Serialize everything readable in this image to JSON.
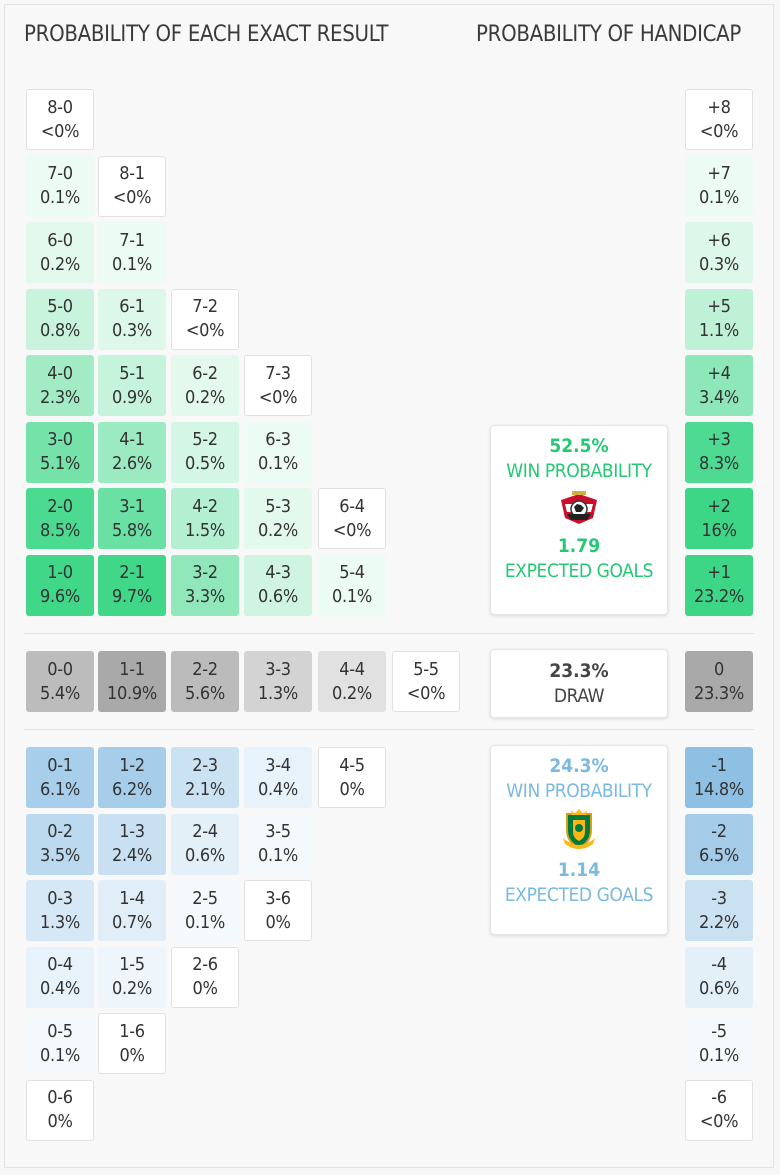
{
  "headers": {
    "exact": "PROBABILITY OF EACH EXACT RESULT",
    "handicap": "PROBABILITY OF HANDICAP"
  },
  "colors": {
    "home": "#3dd687",
    "away": "#8ec0e4",
    "draw": "#a9a9a9",
    "home_text": "#25c873",
    "away_text": "#7ab9e0"
  },
  "home_rows": [
    [
      {
        "score": "8-0",
        "prob": "<0%",
        "p": 0
      }
    ],
    [
      {
        "score": "7-0",
        "prob": "0.1%",
        "p": 0.1
      },
      {
        "score": "8-1",
        "prob": "<0%",
        "p": 0
      }
    ],
    [
      {
        "score": "6-0",
        "prob": "0.2%",
        "p": 0.2
      },
      {
        "score": "7-1",
        "prob": "0.1%",
        "p": 0.1
      }
    ],
    [
      {
        "score": "5-0",
        "prob": "0.8%",
        "p": 0.8
      },
      {
        "score": "6-1",
        "prob": "0.3%",
        "p": 0.3
      },
      {
        "score": "7-2",
        "prob": "<0%",
        "p": 0
      }
    ],
    [
      {
        "score": "4-0",
        "prob": "2.3%",
        "p": 2.3
      },
      {
        "score": "5-1",
        "prob": "0.9%",
        "p": 0.9
      },
      {
        "score": "6-2",
        "prob": "0.2%",
        "p": 0.2
      },
      {
        "score": "7-3",
        "prob": "<0%",
        "p": 0
      }
    ],
    [
      {
        "score": "3-0",
        "prob": "5.1%",
        "p": 5.1
      },
      {
        "score": "4-1",
        "prob": "2.6%",
        "p": 2.6
      },
      {
        "score": "5-2",
        "prob": "0.5%",
        "p": 0.5
      },
      {
        "score": "6-3",
        "prob": "0.1%",
        "p": 0.1
      }
    ],
    [
      {
        "score": "2-0",
        "prob": "8.5%",
        "p": 8.5
      },
      {
        "score": "3-1",
        "prob": "5.8%",
        "p": 5.8
      },
      {
        "score": "4-2",
        "prob": "1.5%",
        "p": 1.5
      },
      {
        "score": "5-3",
        "prob": "0.2%",
        "p": 0.2
      },
      {
        "score": "6-4",
        "prob": "<0%",
        "p": 0
      }
    ],
    [
      {
        "score": "1-0",
        "prob": "9.6%",
        "p": 9.6
      },
      {
        "score": "2-1",
        "prob": "9.7%",
        "p": 9.7
      },
      {
        "score": "3-2",
        "prob": "3.3%",
        "p": 3.3
      },
      {
        "score": "4-3",
        "prob": "0.6%",
        "p": 0.6
      },
      {
        "score": "5-4",
        "prob": "0.1%",
        "p": 0.1
      }
    ]
  ],
  "draw_row": [
    {
      "score": "0-0",
      "prob": "5.4%",
      "p": 5.4
    },
    {
      "score": "1-1",
      "prob": "10.9%",
      "p": 10.9
    },
    {
      "score": "2-2",
      "prob": "5.6%",
      "p": 5.6
    },
    {
      "score": "3-3",
      "prob": "1.3%",
      "p": 1.3
    },
    {
      "score": "4-4",
      "prob": "0.2%",
      "p": 0.2
    },
    {
      "score": "5-5",
      "prob": "<0%",
      "p": 0
    }
  ],
  "away_rows": [
    [
      {
        "score": "0-1",
        "prob": "6.1%",
        "p": 6.1
      },
      {
        "score": "1-2",
        "prob": "6.2%",
        "p": 6.2
      },
      {
        "score": "2-3",
        "prob": "2.1%",
        "p": 2.1
      },
      {
        "score": "3-4",
        "prob": "0.4%",
        "p": 0.4
      },
      {
        "score": "4-5",
        "prob": "0%",
        "p": 0
      }
    ],
    [
      {
        "score": "0-2",
        "prob": "3.5%",
        "p": 3.5
      },
      {
        "score": "1-3",
        "prob": "2.4%",
        "p": 2.4
      },
      {
        "score": "2-4",
        "prob": "0.6%",
        "p": 0.6
      },
      {
        "score": "3-5",
        "prob": "0.1%",
        "p": 0.1
      }
    ],
    [
      {
        "score": "0-3",
        "prob": "1.3%",
        "p": 1.3
      },
      {
        "score": "1-4",
        "prob": "0.7%",
        "p": 0.7
      },
      {
        "score": "2-5",
        "prob": "0.1%",
        "p": 0.1
      },
      {
        "score": "3-6",
        "prob": "0%",
        "p": 0
      }
    ],
    [
      {
        "score": "0-4",
        "prob": "0.4%",
        "p": 0.4
      },
      {
        "score": "1-5",
        "prob": "0.2%",
        "p": 0.2
      },
      {
        "score": "2-6",
        "prob": "0%",
        "p": 0
      }
    ],
    [
      {
        "score": "0-5",
        "prob": "0.1%",
        "p": 0.1
      },
      {
        "score": "1-6",
        "prob": "0%",
        "p": 0
      }
    ],
    [
      {
        "score": "0-6",
        "prob": "0%",
        "p": 0
      }
    ]
  ],
  "handicap": [
    {
      "label": "+8",
      "prob": "<0%",
      "p": 0,
      "side": "home"
    },
    {
      "label": "+7",
      "prob": "0.1%",
      "p": 0.1,
      "side": "home"
    },
    {
      "label": "+6",
      "prob": "0.3%",
      "p": 0.3,
      "side": "home"
    },
    {
      "label": "+5",
      "prob": "1.1%",
      "p": 1.1,
      "side": "home"
    },
    {
      "label": "+4",
      "prob": "3.4%",
      "p": 3.4,
      "side": "home"
    },
    {
      "label": "+3",
      "prob": "8.3%",
      "p": 8.3,
      "side": "home"
    },
    {
      "label": "+2",
      "prob": "16%",
      "p": 16,
      "side": "home"
    },
    {
      "label": "+1",
      "prob": "23.2%",
      "p": 23.2,
      "side": "home"
    },
    {
      "label": "0",
      "prob": "23.3%",
      "p": 23.3,
      "side": "draw"
    },
    {
      "label": "-1",
      "prob": "14.8%",
      "p": 14.8,
      "side": "away"
    },
    {
      "label": "-2",
      "prob": "6.5%",
      "p": 6.5,
      "side": "away"
    },
    {
      "label": "-3",
      "prob": "2.2%",
      "p": 2.2,
      "side": "away"
    },
    {
      "label": "-4",
      "prob": "0.6%",
      "p": 0.6,
      "side": "away"
    },
    {
      "label": "-5",
      "prob": "0.1%",
      "p": 0.1,
      "side": "away"
    },
    {
      "label": "-6",
      "prob": "<0%",
      "p": 0,
      "side": "away"
    }
  ],
  "home_card": {
    "win_pct": "52.5%",
    "win_label": "WIN PROBABILITY",
    "xg": "1.79",
    "xg_label": "EXPECTED GOALS",
    "crest": "egypt-crest-icon"
  },
  "draw_card": {
    "pct": "23.3%",
    "label": "DRAW"
  },
  "away_card": {
    "win_pct": "24.3%",
    "win_label": "WIN PROBABILITY",
    "xg": "1.14",
    "xg_label": "EXPECTED GOALS",
    "crest": "south-africa-crest-icon"
  },
  "chart_data": {
    "type": "heatmap",
    "title": "PROBABILITY OF EACH EXACT RESULT",
    "series": [
      {
        "name": "home-win",
        "values": {
          "8-0": 0,
          "7-0": 0.1,
          "8-1": 0,
          "6-0": 0.2,
          "7-1": 0.1,
          "5-0": 0.8,
          "6-1": 0.3,
          "7-2": 0,
          "4-0": 2.3,
          "5-1": 0.9,
          "6-2": 0.2,
          "7-3": 0,
          "3-0": 5.1,
          "4-1": 2.6,
          "5-2": 0.5,
          "6-3": 0.1,
          "2-0": 8.5,
          "3-1": 5.8,
          "4-2": 1.5,
          "5-3": 0.2,
          "6-4": 0,
          "1-0": 9.6,
          "2-1": 9.7,
          "3-2": 3.3,
          "4-3": 0.6,
          "5-4": 0.1
        }
      },
      {
        "name": "draw",
        "values": {
          "0-0": 5.4,
          "1-1": 10.9,
          "2-2": 5.6,
          "3-3": 1.3,
          "4-4": 0.2,
          "5-5": 0
        }
      },
      {
        "name": "away-win",
        "values": {
          "0-1": 6.1,
          "1-2": 6.2,
          "2-3": 2.1,
          "3-4": 0.4,
          "4-5": 0,
          "0-2": 3.5,
          "1-3": 2.4,
          "2-4": 0.6,
          "3-5": 0.1,
          "0-3": 1.3,
          "1-4": 0.7,
          "2-5": 0.1,
          "3-6": 0,
          "0-4": 0.4,
          "1-5": 0.2,
          "2-6": 0,
          "0-5": 0.1,
          "1-6": 0,
          "0-6": 0
        }
      }
    ],
    "handicap": {
      "+8": 0,
      "+7": 0.1,
      "+6": 0.3,
      "+5": 1.1,
      "+4": 3.4,
      "+3": 8.3,
      "+2": 16,
      "+1": 23.2,
      "0": 23.3,
      "-1": 14.8,
      "-2": 6.5,
      "-3": 2.2,
      "-4": 0.6,
      "-5": 0.1,
      "-6": 0
    },
    "unit": "%"
  }
}
